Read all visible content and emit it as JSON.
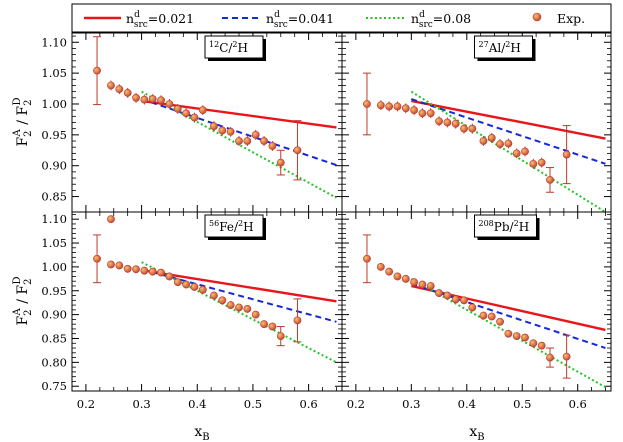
{
  "legend": [
    {
      "id": "s1",
      "label": "n",
      "sup": "d",
      "sub": "src",
      "value": "=0.021",
      "color": "#e8151b",
      "style": "solid"
    },
    {
      "id": "s2",
      "label": "n",
      "sup": "d",
      "sub": "src",
      "value": "=0.041",
      "color": "#1529d6",
      "style": "dashed"
    },
    {
      "id": "s3",
      "label": "n",
      "sup": "d",
      "sub": "src",
      "value": "=0.08",
      "color": "#22c422",
      "style": "dotted"
    },
    {
      "id": "exp",
      "label": "Exp.",
      "color": "#d65a4a",
      "style": "marker"
    }
  ],
  "axes": {
    "xlabel": {
      "main": "x",
      "sub": "B"
    },
    "ylabel": {
      "main": "F",
      "sub1": "2",
      "sup1": "A",
      "mid": " / F",
      "sub2": "2",
      "sup2": "D"
    },
    "xticks": [
      "0.2",
      "0.3",
      "0.4",
      "0.5",
      "0.6"
    ],
    "yticks_top": [
      "0.85",
      "0.90",
      "0.95",
      "1.00",
      "1.05",
      "1.10"
    ],
    "yticks_bottom": [
      "0.75",
      "0.80",
      "0.85",
      "0.90",
      "0.95",
      "1.00",
      "1.05",
      "1.10"
    ]
  },
  "chart_data": [
    {
      "type": "scatter",
      "panel": "C",
      "label": {
        "pre": "12",
        "el": "C/",
        "pre2": "2",
        "el2": "H"
      },
      "xlim": [
        0.175,
        0.66
      ],
      "ylim": [
        0.825,
        1.115
      ],
      "series": [
        {
          "name": "n_src^d=0.021",
          "x": [
            0.3,
            0.65
          ],
          "y": [
            1.005,
            0.962
          ]
        },
        {
          "name": "n_src^d=0.041",
          "x": [
            0.3,
            0.65
          ],
          "y": [
            1.008,
            0.901
          ]
        },
        {
          "name": "n_src^d=0.08",
          "x": [
            0.3,
            0.65
          ],
          "y": [
            1.02,
            0.848
          ]
        }
      ],
      "exp": {
        "x": [
          0.22,
          0.245,
          0.26,
          0.275,
          0.29,
          0.305,
          0.32,
          0.335,
          0.35,
          0.365,
          0.38,
          0.395,
          0.41,
          0.43,
          0.445,
          0.46,
          0.475,
          0.49,
          0.505,
          0.52,
          0.535,
          0.55,
          0.58
        ],
        "y": [
          1.054,
          1.03,
          1.024,
          1.018,
          1.01,
          1.007,
          1.008,
          1.006,
          1.0,
          0.992,
          0.985,
          0.978,
          0.99,
          0.964,
          0.957,
          0.955,
          0.94,
          0.94,
          0.95,
          0.94,
          0.932,
          0.905,
          0.925
        ],
        "err": [
          0.055,
          0.008,
          0.008,
          0.008,
          0.008,
          0.008,
          0.008,
          0.008,
          0.008,
          0.008,
          0.008,
          0.008,
          0.008,
          0.008,
          0.008,
          0.008,
          0.008,
          0.008,
          0.008,
          0.008,
          0.008,
          0.02,
          0.048
        ]
      }
    },
    {
      "type": "scatter",
      "panel": "Al",
      "label": {
        "pre": "27",
        "el": "Al/",
        "pre2": "2",
        "el2": "H"
      },
      "xlim": [
        0.175,
        0.66
      ],
      "ylim": [
        0.825,
        1.115
      ],
      "series": [
        {
          "name": "n_src^d=0.021",
          "x": [
            0.3,
            0.65
          ],
          "y": [
            1.005,
            0.944
          ]
        },
        {
          "name": "n_src^d=0.041",
          "x": [
            0.3,
            0.65
          ],
          "y": [
            1.008,
            0.903
          ]
        },
        {
          "name": "n_src^d=0.08",
          "x": [
            0.3,
            0.65
          ],
          "y": [
            1.02,
            0.825
          ]
        }
      ],
      "exp": {
        "x": [
          0.22,
          0.245,
          0.26,
          0.275,
          0.29,
          0.305,
          0.32,
          0.335,
          0.35,
          0.365,
          0.38,
          0.395,
          0.41,
          0.43,
          0.445,
          0.46,
          0.475,
          0.49,
          0.505,
          0.52,
          0.535,
          0.55,
          0.58
        ],
        "y": [
          1.0,
          0.998,
          0.996,
          0.996,
          0.993,
          0.99,
          0.985,
          0.985,
          0.972,
          0.97,
          0.968,
          0.96,
          0.96,
          0.94,
          0.945,
          0.935,
          0.936,
          0.92,
          0.923,
          0.903,
          0.905,
          0.877,
          0.918
        ],
        "err": [
          0.05,
          0.008,
          0.008,
          0.008,
          0.008,
          0.008,
          0.008,
          0.008,
          0.008,
          0.008,
          0.008,
          0.008,
          0.008,
          0.008,
          0.008,
          0.008,
          0.008,
          0.008,
          0.008,
          0.008,
          0.008,
          0.02,
          0.047
        ]
      }
    },
    {
      "type": "scatter",
      "panel": "Fe",
      "label": {
        "pre": "56",
        "el": "Fe/",
        "pre2": "2",
        "el2": "H"
      },
      "xlim": [
        0.175,
        0.66
      ],
      "ylim": [
        0.74,
        1.115
      ],
      "series": [
        {
          "name": "n_src^d=0.021",
          "x": [
            0.3,
            0.65
          ],
          "y": [
            0.993,
            0.928
          ]
        },
        {
          "name": "n_src^d=0.041",
          "x": [
            0.3,
            0.65
          ],
          "y": [
            0.995,
            0.885
          ]
        },
        {
          "name": "n_src^d=0.08",
          "x": [
            0.3,
            0.65
          ],
          "y": [
            1.01,
            0.8
          ]
        }
      ],
      "exp": {
        "x": [
          0.22,
          0.245,
          0.26,
          0.275,
          0.29,
          0.305,
          0.32,
          0.335,
          0.35,
          0.365,
          0.38,
          0.395,
          0.41,
          0.43,
          0.445,
          0.46,
          0.475,
          0.49,
          0.505,
          0.52,
          0.535,
          0.55,
          0.58
        ],
        "y": [
          1.017,
          1.005,
          1.003,
          0.996,
          0.995,
          0.992,
          0.99,
          0.988,
          0.98,
          0.968,
          0.963,
          0.958,
          0.952,
          0.94,
          0.93,
          0.92,
          0.915,
          0.912,
          0.9,
          0.88,
          0.875,
          0.855,
          0.888
        ],
        "err": [
          0.05,
          0.008,
          0.008,
          0.008,
          0.008,
          0.008,
          0.008,
          0.008,
          0.008,
          0.008,
          0.008,
          0.008,
          0.008,
          0.008,
          0.008,
          0.008,
          0.008,
          0.008,
          0.008,
          0.008,
          0.008,
          0.02,
          0.045
        ]
      },
      "extra_point": {
        "x": 0.245,
        "y": 1.1
      }
    },
    {
      "type": "scatter",
      "panel": "Pb",
      "label": {
        "pre": "208",
        "el": "Pb/",
        "pre2": "2",
        "el2": "H"
      },
      "xlim": [
        0.175,
        0.66
      ],
      "ylim": [
        0.74,
        1.115
      ],
      "series": [
        {
          "name": "n_src^d=0.021",
          "x": [
            0.3,
            0.65
          ],
          "y": [
            0.96,
            0.868
          ]
        },
        {
          "name": "n_src^d=0.041",
          "x": [
            0.3,
            0.65
          ],
          "y": [
            0.965,
            0.83
          ]
        },
        {
          "name": "n_src^d=0.08",
          "x": [
            0.3,
            0.65
          ],
          "y": [
            0.975,
            0.748
          ]
        }
      ],
      "exp": {
        "x": [
          0.22,
          0.245,
          0.26,
          0.275,
          0.29,
          0.305,
          0.32,
          0.335,
          0.35,
          0.365,
          0.38,
          0.395,
          0.41,
          0.43,
          0.445,
          0.46,
          0.475,
          0.49,
          0.505,
          0.52,
          0.535,
          0.55,
          0.58
        ],
        "y": [
          1.017,
          1.0,
          0.99,
          0.98,
          0.975,
          0.968,
          0.963,
          0.96,
          0.945,
          0.94,
          0.932,
          0.93,
          0.915,
          0.898,
          0.896,
          0.885,
          0.86,
          0.855,
          0.852,
          0.84,
          0.835,
          0.81,
          0.812
        ],
        "err": [
          0.05,
          0.008,
          0.008,
          0.008,
          0.008,
          0.008,
          0.008,
          0.008,
          0.008,
          0.008,
          0.008,
          0.008,
          0.008,
          0.008,
          0.008,
          0.008,
          0.008,
          0.008,
          0.008,
          0.008,
          0.008,
          0.02,
          0.045
        ]
      }
    }
  ]
}
